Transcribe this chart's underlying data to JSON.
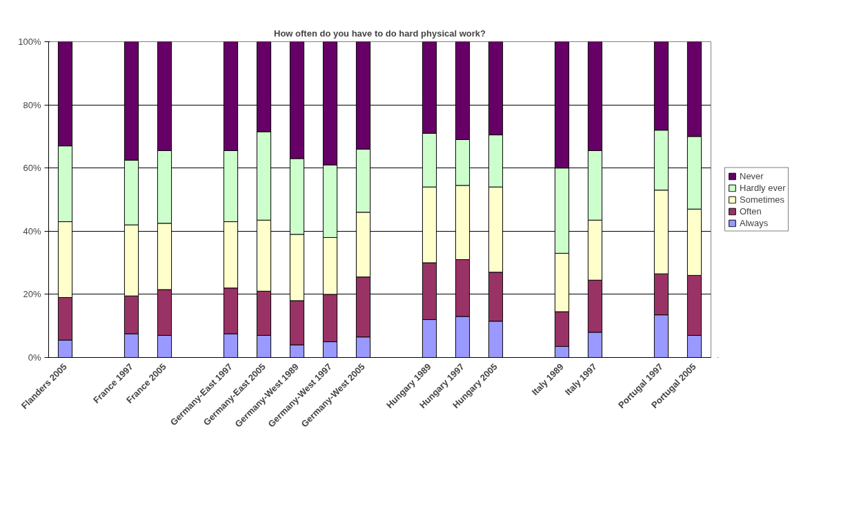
{
  "chart_data": {
    "type": "bar",
    "stacked": true,
    "title": "How often do you have to do hard physical work?",
    "categories": [
      "Flanders 2005",
      null,
      "France 1997",
      "France 2005",
      null,
      "Germany-East 1997",
      "Germany-East 2005",
      "Germany-West 1989",
      "Germany-West 1997",
      "Germany-West 2005",
      null,
      "Hungary 1989",
      "Hungary 1997",
      "Hungary 2005",
      null,
      "Italy 1989",
      "Italy 1997",
      null,
      "Portugal 1997",
      "Portugal 2005"
    ],
    "series": [
      {
        "name": "Always",
        "color": "#9999ff",
        "values": [
          5.5,
          null,
          7.5,
          7,
          null,
          7.5,
          7,
          4,
          5,
          6.5,
          null,
          12,
          13,
          11.5,
          null,
          3.5,
          8,
          null,
          13.5,
          7
        ]
      },
      {
        "name": "Often",
        "color": "#993366",
        "values": [
          13.5,
          null,
          12,
          14.5,
          null,
          14.5,
          14,
          14,
          15,
          19,
          null,
          18,
          18,
          15.5,
          null,
          11,
          16.5,
          null,
          13,
          19
        ]
      },
      {
        "name": "Sometimes",
        "color": "#ffffcc",
        "values": [
          24,
          null,
          22.5,
          21,
          null,
          21,
          22.5,
          21,
          18,
          20.5,
          null,
          24,
          23.5,
          27,
          null,
          18.5,
          19,
          null,
          26.5,
          21
        ]
      },
      {
        "name": "Hardly ever",
        "color": "#ccffcc",
        "values": [
          24,
          null,
          20.5,
          23,
          null,
          22.5,
          28,
          24,
          23,
          20,
          null,
          17,
          14.5,
          16.5,
          null,
          27,
          22,
          null,
          19,
          23
        ]
      },
      {
        "name": "Never",
        "color": "#660066",
        "values": [
          33,
          null,
          37.5,
          34.5,
          null,
          34.5,
          28.5,
          37,
          39,
          34,
          null,
          29,
          31,
          29.5,
          null,
          40,
          34.5,
          null,
          28,
          30
        ]
      }
    ],
    "ylim": [
      0,
      100
    ],
    "yticks": [
      {
        "value": 0,
        "label": "0%"
      },
      {
        "value": 20,
        "label": "20%"
      },
      {
        "value": 40,
        "label": "40%"
      },
      {
        "value": 60,
        "label": "60%"
      },
      {
        "value": 80,
        "label": "80%"
      },
      {
        "value": 100,
        "label": "100%"
      }
    ],
    "grid": "y",
    "legend": "right"
  }
}
